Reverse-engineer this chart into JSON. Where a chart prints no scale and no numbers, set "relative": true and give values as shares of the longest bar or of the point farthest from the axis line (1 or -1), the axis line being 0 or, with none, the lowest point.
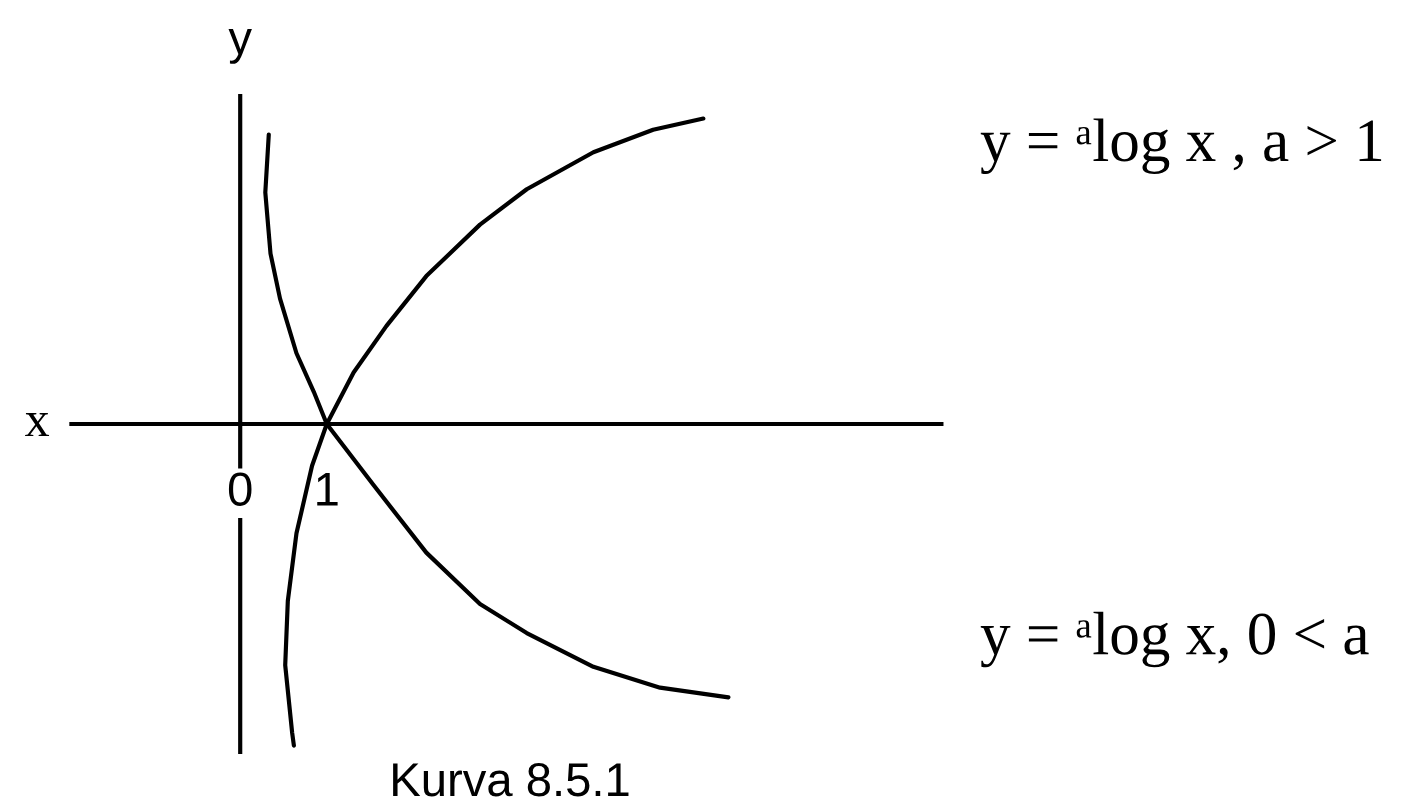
{
  "chart_data": {
    "type": "line",
    "relative": true,
    "xlabel": "x",
    "ylabel": "y",
    "xlim": [
      -1.95,
      8.1
    ],
    "xticks": [
      0,
      1
    ],
    "series": [
      {
        "name": "y = ᵃlog x , a > 1",
        "color": "#000000",
        "x": [
          0.62,
          0.6,
          0.52,
          0.55,
          0.65,
          0.83,
          1,
          1.31,
          1.69,
          2.15,
          2.77,
          3.31,
          4.08,
          4.77,
          5.35
        ],
        "values": [
          -1,
          -0.96,
          -0.75,
          -0.55,
          -0.34,
          -0.13,
          0,
          0.16,
          0.305,
          0.46,
          0.62,
          0.73,
          0.845,
          0.915,
          0.95
        ]
      },
      {
        "name": "y = ᵃlog x, 0 < a",
        "color": "#000000",
        "x": [
          0.33,
          0.29,
          0.35,
          0.46,
          0.65,
          0.85,
          1,
          1.54,
          2.15,
          2.77,
          3.31,
          4.08,
          4.85,
          5.64
        ],
        "values": [
          0.9,
          0.72,
          0.53,
          0.39,
          0.22,
          0.1,
          0,
          -0.19,
          -0.4,
          -0.56,
          -0.65,
          -0.755,
          -0.82,
          -0.85
        ]
      }
    ],
    "annotations": [
      "Kurva 8.5.1"
    ]
  }
}
